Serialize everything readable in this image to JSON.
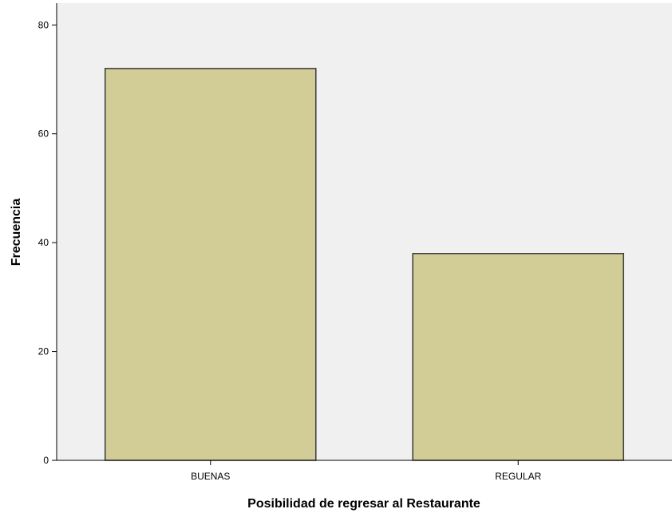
{
  "chart_data": {
    "type": "bar",
    "title": "",
    "xlabel": "Posibilidad de regresar al Restaurante",
    "ylabel": "Frecuencia",
    "categories": [
      "BUENAS",
      "REGULAR"
    ],
    "values": [
      72,
      38
    ],
    "ylim": [
      0,
      84
    ],
    "yticks": [
      0,
      20,
      40,
      60,
      80
    ],
    "grid": false,
    "legend": "none",
    "colors": {
      "bar_fill": "#d2cc96",
      "bar_stroke": "#3a3a3a",
      "plot_background": "#f0f0f0",
      "axis": "#000000"
    }
  }
}
